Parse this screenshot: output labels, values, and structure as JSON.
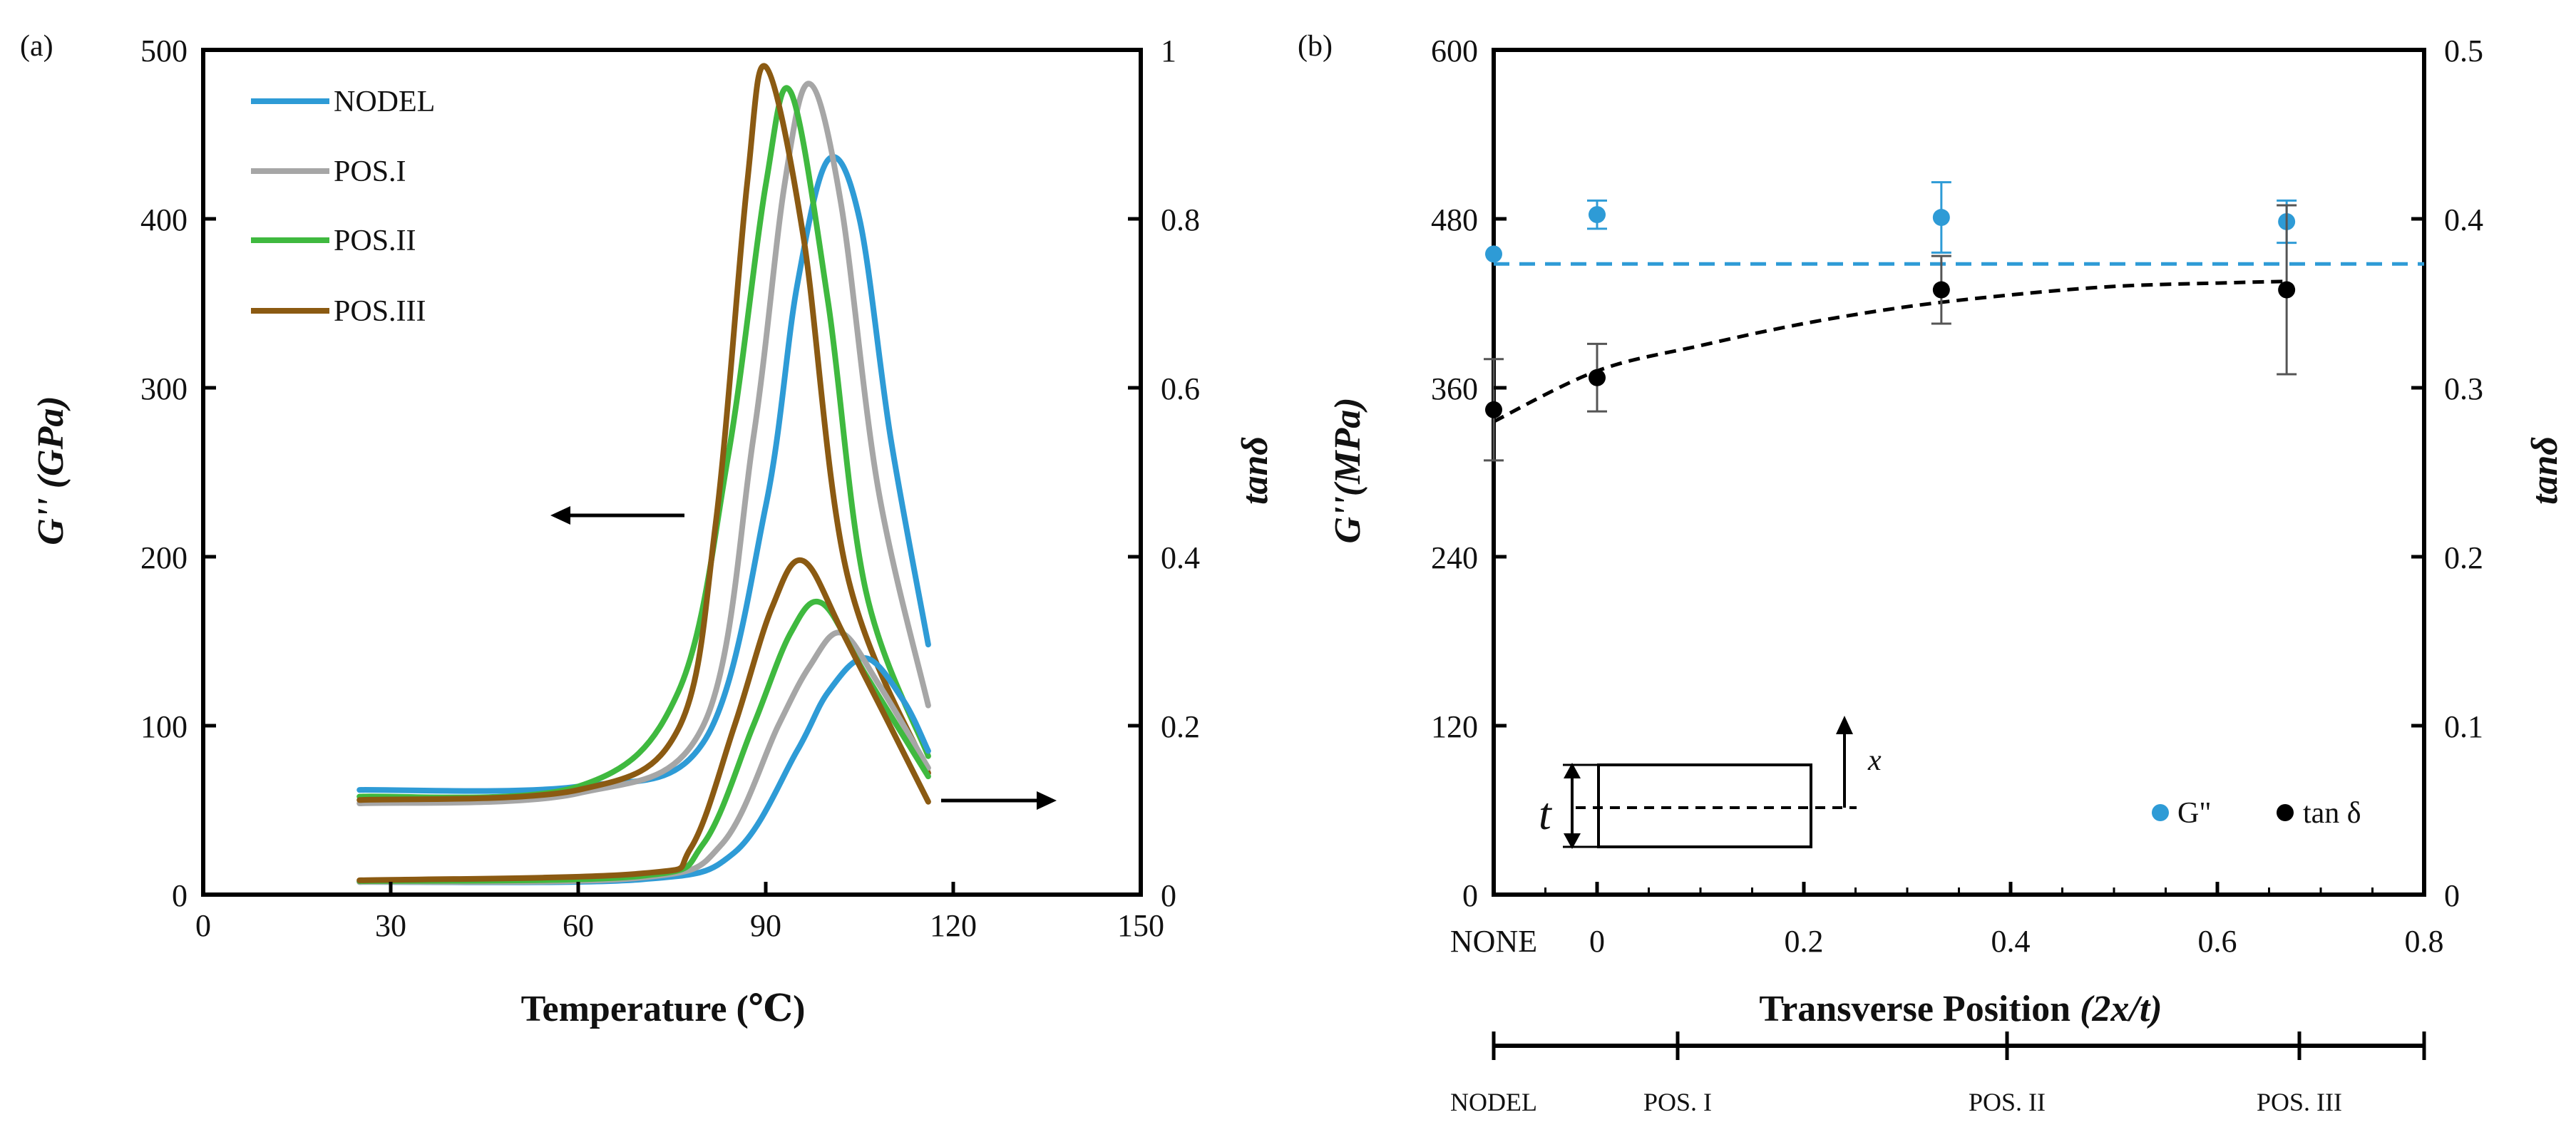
{
  "chart_data": [
    {
      "panel": "(a)",
      "type": "line",
      "xlabel": "Temperature (℃)",
      "ylabel": "G'' (GPa)",
      "y2label": "tanδ",
      "xlim": [
        0,
        150
      ],
      "ylim": [
        0,
        500
      ],
      "y2lim": [
        0,
        1
      ],
      "xticks": [
        "0",
        "30",
        "60",
        "90",
        "120",
        "150"
      ],
      "yticks": [
        "0",
        "100",
        "200",
        "300",
        "400",
        "500"
      ],
      "y2ticks": [
        "0",
        "0.2",
        "0.4",
        "0.6",
        "0.8",
        "1"
      ],
      "legend": [
        "NODEL",
        "POS.I",
        "POS.II",
        "POS.III"
      ],
      "legend_position": "top-left",
      "annotations": [
        "left arrow indicates G'' axis",
        "right arrow indicates tanδ axis"
      ],
      "series": [
        {
          "name": "NODEL",
          "color": "#2e9bd6",
          "axis": "left",
          "peak_x": 100,
          "peak_y": 435,
          "x": [
            25,
            60,
            80,
            90,
            95,
            100,
            105,
            110,
            116
          ],
          "y": [
            62,
            64,
            90,
            230,
            360,
            435,
            400,
            270,
            148
          ]
        },
        {
          "name": "POS.I",
          "color": "#a6a6a6",
          "axis": "left",
          "peak_x": 97,
          "peak_y": 480,
          "x": [
            25,
            60,
            80,
            88,
            93,
            97,
            102,
            108,
            116
          ],
          "y": [
            54,
            60,
            100,
            270,
            420,
            480,
            410,
            240,
            112
          ]
        },
        {
          "name": "POS.II",
          "color": "#3fb93f",
          "axis": "left",
          "peak_x": 94,
          "peak_y": 475,
          "x": [
            25,
            60,
            76,
            84,
            90,
            94,
            100,
            106,
            116
          ],
          "y": [
            58,
            64,
            120,
            260,
            420,
            475,
            350,
            180,
            82
          ]
        },
        {
          "name": "POS.III",
          "color": "#8b5a12",
          "axis": "left",
          "peak_x": 90,
          "peak_y": 490,
          "x": [
            25,
            60,
            76,
            82,
            87,
            90,
            96,
            103,
            116
          ],
          "y": [
            56,
            62,
            98,
            220,
            420,
            490,
            390,
            190,
            72
          ]
        },
        {
          "name": "NODEL",
          "color": "#2e9bd6",
          "axis": "right",
          "peak_x": 106,
          "peak_y": 0.28,
          "x": [
            25,
            70,
            85,
            95,
            100,
            106,
            112,
            116
          ],
          "y": [
            0.015,
            0.018,
            0.05,
            0.17,
            0.24,
            0.28,
            0.23,
            0.17
          ]
        },
        {
          "name": "POS.I",
          "color": "#a6a6a6",
          "axis": "right",
          "peak_x": 102,
          "peak_y": 0.31,
          "x": [
            25,
            70,
            83,
            92,
            97,
            102,
            108,
            116
          ],
          "y": [
            0.015,
            0.02,
            0.06,
            0.2,
            0.27,
            0.31,
            0.25,
            0.15
          ]
        },
        {
          "name": "POS.II",
          "color": "#3fb93f",
          "axis": "right",
          "peak_x": 99,
          "peak_y": 0.345,
          "x": [
            25,
            70,
            80,
            88,
            94,
            99,
            106,
            116
          ],
          "y": [
            0.016,
            0.022,
            0.06,
            0.2,
            0.31,
            0.345,
            0.26,
            0.14
          ]
        },
        {
          "name": "POS.III",
          "color": "#8b5a12",
          "axis": "right",
          "peak_x": 96,
          "peak_y": 0.395,
          "x": [
            25,
            70,
            78,
            85,
            91,
            96,
            103,
            116
          ],
          "y": [
            0.017,
            0.025,
            0.055,
            0.2,
            0.34,
            0.395,
            0.3,
            0.11
          ]
        }
      ]
    },
    {
      "panel": "(b)",
      "type": "scatter",
      "xlabel_prefix": "Transverse Position ",
      "xlabel_italic": "(2x/t)",
      "ylabel": "G''(MPa)",
      "y2label": "tanδ",
      "xlim": [
        -0.1,
        0.8
      ],
      "ylim": [
        0,
        600
      ],
      "y2lim": [
        0,
        0.5
      ],
      "xticks": [
        "NONE",
        "0",
        "0.2",
        "0.4",
        "0.6",
        "0.8"
      ],
      "yticks": [
        "0",
        "120",
        "240",
        "360",
        "480",
        "600"
      ],
      "y2ticks": [
        "0",
        "0.1",
        "0.2",
        "0.3",
        "0.4",
        "0.5"
      ],
      "legend": [
        "G\"",
        "tan δ"
      ],
      "legend_position": "bottom-right",
      "inset_labels": {
        "t": "t",
        "x": "x"
      },
      "bottom_axis_labels": [
        "NODEL",
        "POS. I",
        "POS. II",
        "POS. III"
      ],
      "series": [
        {
          "name": "G\"",
          "color": "#2e9bd6",
          "axis": "left",
          "x": [
            -0.1,
            0,
            0.333,
            0.667
          ],
          "y": [
            455,
            483,
            481,
            478
          ],
          "err": [
            0,
            10,
            25,
            15
          ],
          "ref_line": 448
        },
        {
          "name": "tan δ",
          "color": "#000000",
          "axis": "right",
          "x": [
            -0.1,
            0,
            0.333,
            0.667
          ],
          "y": [
            0.287,
            0.306,
            0.358,
            0.358
          ],
          "err": [
            0.03,
            0.02,
            0.02,
            0.05
          ],
          "trend_x": [
            -0.1,
            0,
            0.1,
            0.2,
            0.3,
            0.4,
            0.5,
            0.6,
            0.667
          ],
          "trend_y": [
            0.28,
            0.31,
            0.325,
            0.338,
            0.348,
            0.355,
            0.36,
            0.362,
            0.363
          ]
        }
      ]
    }
  ]
}
